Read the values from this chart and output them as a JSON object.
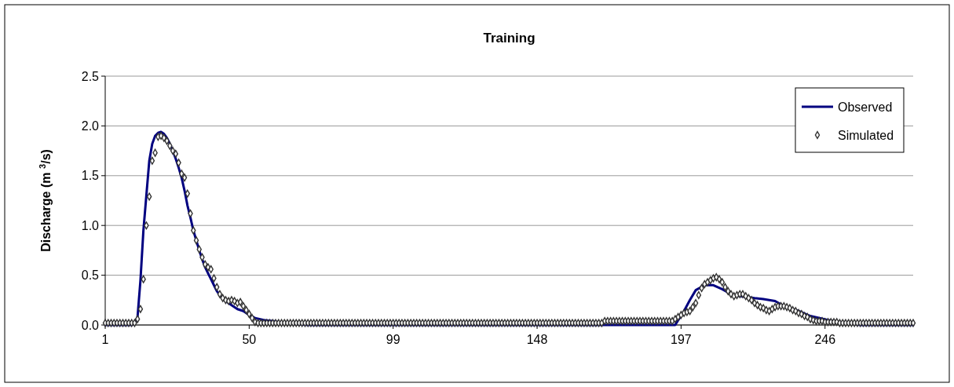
{
  "chart_data": {
    "type": "line",
    "title": "Training",
    "ylabel": "Discharge (m $^{3}$/s)",
    "xlim": [
      1,
      276
    ],
    "xticks": [
      1,
      50,
      99,
      148,
      197,
      246
    ],
    "ylim": [
      0,
      2.5
    ],
    "yticks": [
      {
        "value": 0,
        "label": "0.0"
      },
      {
        "value": 0.5,
        "label": "0.5"
      },
      {
        "value": 1,
        "label": "1.0"
      },
      {
        "value": 1.5,
        "label": "1.5"
      },
      {
        "value": 2,
        "label": "2.0"
      },
      {
        "value": 2.5,
        "label": "2.5"
      }
    ],
    "grid": "y",
    "legend": "top right",
    "series": [
      {
        "name": "Observed",
        "color": "#000080",
        "marker": "none",
        "line_style": "solid",
        "x": [
          1,
          10,
          11,
          12,
          13,
          14,
          15,
          16,
          17,
          18,
          19,
          20,
          21,
          22,
          23,
          24,
          25,
          26,
          27,
          28,
          29,
          30,
          31,
          32,
          33,
          34,
          35,
          36,
          37,
          38,
          39,
          40,
          41,
          42,
          43,
          44,
          45,
          46,
          47,
          48,
          50,
          52,
          55,
          58,
          62,
          70,
          195,
          198,
          200,
          202,
          205,
          208,
          211,
          214,
          217,
          222,
          225,
          229,
          232,
          237,
          241,
          247,
          251,
          254,
          258,
          276
        ],
        "values": [
          0,
          0,
          0.02,
          0.08,
          0.45,
          0.95,
          1.3,
          1.65,
          1.82,
          1.9,
          1.93,
          1.94,
          1.92,
          1.88,
          1.82,
          1.75,
          1.67,
          1.58,
          1.48,
          1.35,
          1.2,
          1.08,
          0.95,
          0.85,
          0.75,
          0.66,
          0.58,
          0.52,
          0.46,
          0.4,
          0.34,
          0.3,
          0.26,
          0.24,
          0.22,
          0.2,
          0.18,
          0.16,
          0.15,
          0.14,
          0.1,
          0.07,
          0.05,
          0.04,
          0.02,
          0,
          0,
          0.14,
          0.25,
          0.35,
          0.4,
          0.4,
          0.36,
          0.31,
          0.29,
          0.27,
          0.26,
          0.24,
          0.19,
          0.14,
          0.09,
          0.05,
          0.03,
          0.02,
          0,
          0
        ]
      },
      {
        "name": "Simulated",
        "type": "scatter",
        "color": "#333333",
        "marker": "diamond",
        "x": [
          1,
          2,
          3,
          4,
          5,
          6,
          7,
          8,
          9,
          10,
          11,
          12,
          13,
          14,
          15,
          16,
          17,
          18,
          19,
          20,
          21,
          22,
          23,
          24,
          25,
          26,
          27,
          28,
          29,
          30,
          31,
          32,
          33,
          34,
          35,
          36,
          37,
          38,
          39,
          40,
          41,
          42,
          43,
          44,
          45,
          46,
          47,
          48,
          49,
          50,
          51,
          52,
          53,
          54,
          55,
          56,
          57,
          58,
          59,
          60,
          61,
          62,
          63,
          64,
          65,
          66,
          67,
          68,
          69,
          70,
          71,
          72,
          73,
          74,
          75,
          76,
          77,
          78,
          79,
          80,
          81,
          82,
          83,
          84,
          85,
          86,
          87,
          88,
          89,
          90,
          91,
          92,
          93,
          94,
          95,
          96,
          97,
          98,
          99,
          100,
          101,
          102,
          103,
          104,
          105,
          106,
          107,
          108,
          109,
          110,
          111,
          112,
          113,
          114,
          115,
          116,
          117,
          118,
          119,
          120,
          121,
          122,
          123,
          124,
          125,
          126,
          127,
          128,
          129,
          130,
          131,
          132,
          133,
          134,
          135,
          136,
          137,
          138,
          139,
          140,
          141,
          142,
          143,
          144,
          145,
          146,
          147,
          148,
          149,
          150,
          151,
          152,
          153,
          154,
          155,
          156,
          157,
          158,
          159,
          160,
          161,
          162,
          163,
          164,
          165,
          166,
          167,
          168,
          169,
          170,
          171,
          172,
          173,
          174,
          175,
          176,
          177,
          178,
          179,
          180,
          181,
          182,
          183,
          184,
          185,
          186,
          187,
          188,
          189,
          190,
          191,
          192,
          193,
          194,
          195,
          196,
          197,
          198,
          199,
          200,
          201,
          202,
          203,
          204,
          205,
          206,
          207,
          208,
          209,
          210,
          211,
          212,
          213,
          214,
          215,
          216,
          217,
          218,
          219,
          220,
          221,
          222,
          223,
          224,
          225,
          226,
          227,
          228,
          229,
          230,
          231,
          232,
          233,
          234,
          235,
          236,
          237,
          238,
          239,
          240,
          241,
          242,
          243,
          244,
          245,
          246,
          247,
          248,
          249,
          250,
          251,
          252,
          253,
          254,
          255,
          256,
          257,
          258,
          259,
          260,
          261,
          262,
          263,
          264,
          265,
          266,
          267,
          268,
          269,
          270,
          271,
          272,
          273,
          274,
          275,
          276
        ],
        "values": [
          0.02,
          0.02,
          0.02,
          0.02,
          0.02,
          0.02,
          0.02,
          0.02,
          0.02,
          0.02,
          0.02,
          0.06,
          0.16,
          0.46,
          1.0,
          1.29,
          1.65,
          1.73,
          1.89,
          1.9,
          1.88,
          1.85,
          1.8,
          1.75,
          1.72,
          1.63,
          1.52,
          1.48,
          1.32,
          1.12,
          0.95,
          0.85,
          0.76,
          0.68,
          0.61,
          0.58,
          0.56,
          0.47,
          0.38,
          0.31,
          0.27,
          0.25,
          0.24,
          0.25,
          0.24,
          0.22,
          0.23,
          0.19,
          0.15,
          0.11,
          0.07,
          0.03,
          0.02,
          0.02,
          0.02,
          0.02,
          0.02,
          0.02,
          0.02,
          0.02,
          0.02,
          0.02,
          0.02,
          0.02,
          0.02,
          0.02,
          0.02,
          0.02,
          0.02,
          0.02,
          0.02,
          0.02,
          0.02,
          0.02,
          0.02,
          0.02,
          0.02,
          0.02,
          0.02,
          0.02,
          0.02,
          0.02,
          0.02,
          0.02,
          0.02,
          0.02,
          0.02,
          0.02,
          0.02,
          0.02,
          0.02,
          0.02,
          0.02,
          0.02,
          0.02,
          0.02,
          0.02,
          0.02,
          0.02,
          0.02,
          0.02,
          0.02,
          0.02,
          0.02,
          0.02,
          0.02,
          0.02,
          0.02,
          0.02,
          0.02,
          0.02,
          0.02,
          0.02,
          0.02,
          0.02,
          0.02,
          0.02,
          0.02,
          0.02,
          0.02,
          0.02,
          0.02,
          0.02,
          0.02,
          0.02,
          0.02,
          0.02,
          0.02,
          0.02,
          0.02,
          0.02,
          0.02,
          0.02,
          0.02,
          0.02,
          0.02,
          0.02,
          0.02,
          0.02,
          0.02,
          0.02,
          0.02,
          0.02,
          0.02,
          0.02,
          0.02,
          0.02,
          0.02,
          0.02,
          0.02,
          0.02,
          0.02,
          0.02,
          0.02,
          0.02,
          0.02,
          0.02,
          0.02,
          0.02,
          0.02,
          0.02,
          0.02,
          0.02,
          0.02,
          0.02,
          0.02,
          0.02,
          0.02,
          0.02,
          0.02,
          0.04,
          0.04,
          0.04,
          0.04,
          0.04,
          0.04,
          0.04,
          0.04,
          0.04,
          0.04,
          0.04,
          0.04,
          0.04,
          0.04,
          0.04,
          0.04,
          0.04,
          0.04,
          0.04,
          0.04,
          0.04,
          0.04,
          0.04,
          0.04,
          0.06,
          0.08,
          0.1,
          0.12,
          0.13,
          0.14,
          0.18,
          0.22,
          0.3,
          0.37,
          0.41,
          0.43,
          0.45,
          0.47,
          0.48,
          0.46,
          0.43,
          0.38,
          0.34,
          0.31,
          0.29,
          0.3,
          0.31,
          0.31,
          0.29,
          0.27,
          0.25,
          0.22,
          0.2,
          0.18,
          0.17,
          0.15,
          0.14,
          0.16,
          0.18,
          0.19,
          0.19,
          0.19,
          0.18,
          0.17,
          0.15,
          0.14,
          0.12,
          0.11,
          0.09,
          0.08,
          0.06,
          0.05,
          0.04,
          0.04,
          0.04,
          0.03,
          0.03,
          0.03,
          0.03,
          0.03,
          0.02,
          0.02,
          0.02,
          0.02,
          0.02,
          0.02,
          0.02,
          0.02,
          0.02,
          0.02,
          0.02,
          0.02,
          0.02,
          0.02,
          0.02,
          0.02,
          0.02,
          0.02,
          0.02,
          0.02,
          0.02,
          0.02,
          0.02,
          0.02,
          0.02,
          0.02
        ]
      }
    ]
  }
}
